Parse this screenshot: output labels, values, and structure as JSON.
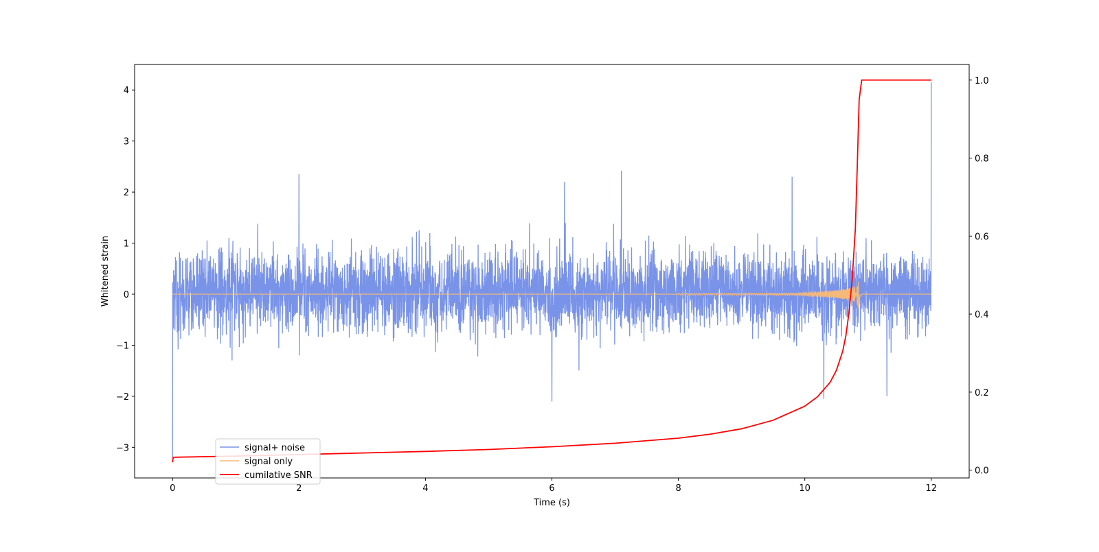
{
  "chart_data": {
    "type": "line",
    "xlabel": "Time (s)",
    "ylabel": "Whitened strain",
    "y2label": "",
    "xlim": [
      -0.6,
      12.6
    ],
    "ylim": [
      -3.6,
      4.5
    ],
    "y2lim": [
      -0.02,
      1.04
    ],
    "xticks": [
      0,
      2,
      4,
      6,
      8,
      10,
      12
    ],
    "yticks": [
      -3,
      -2,
      -1,
      0,
      1,
      2,
      3,
      4
    ],
    "y2ticks": [
      0.0,
      0.2,
      0.4,
      0.6,
      0.8,
      1.0
    ],
    "grid": false,
    "legend_position": "lower-left",
    "series": [
      {
        "name": "signal+ noise",
        "color": "#7993e8",
        "axis": "left",
        "description_values": {
          "t_start": 0,
          "t_end": 12,
          "typical_range": [
            -1.0,
            1.1
          ],
          "peaks": [
            {
              "t": 0.0,
              "y": -3.2
            },
            {
              "t": 2.0,
              "y": 2.35
            },
            {
              "t": 6.2,
              "y": 2.2
            },
            {
              "t": 7.1,
              "y": 2.42
            },
            {
              "t": 9.8,
              "y": 2.3
            },
            {
              "t": 6.0,
              "y": -2.1
            },
            {
              "t": 10.3,
              "y": -2.05
            },
            {
              "t": 11.3,
              "y": -2.0
            },
            {
              "t": 12.0,
              "y": 4.15
            }
          ]
        }
      },
      {
        "name": "signal only",
        "color": "#f5b97a",
        "axis": "left",
        "description_values": {
          "t_start": 0,
          "t_end": 12,
          "chirp_merger_t": 10.85,
          "chirp_peak_amp": 0.3
        }
      },
      {
        "name": "cumilative SNR",
        "color": "#ff0000",
        "axis": "right",
        "x": [
          0.0,
          0.01,
          1,
          2,
          3,
          4,
          5,
          6,
          7,
          8,
          8.5,
          9,
          9.5,
          10,
          10.2,
          10.4,
          10.5,
          10.6,
          10.65,
          10.7,
          10.75,
          10.8,
          10.83,
          10.86,
          10.9,
          12.0
        ],
        "y": [
          0.02,
          0.033,
          0.036,
          0.04,
          0.044,
          0.048,
          0.053,
          0.06,
          0.069,
          0.082,
          0.092,
          0.106,
          0.128,
          0.164,
          0.188,
          0.225,
          0.256,
          0.305,
          0.345,
          0.405,
          0.49,
          0.62,
          0.78,
          0.95,
          1.0,
          1.0
        ]
      }
    ]
  }
}
